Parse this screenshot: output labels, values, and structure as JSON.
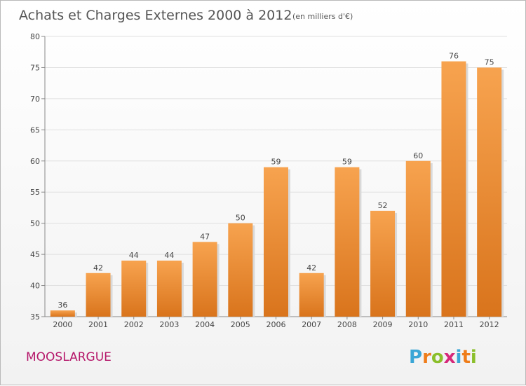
{
  "chart_data": {
    "type": "bar",
    "title": "Achats et Charges Externes 2000 à 2012",
    "subtitle": "(en milliers d'€)",
    "categories": [
      "2000",
      "2001",
      "2002",
      "2003",
      "2004",
      "2005",
      "2006",
      "2007",
      "2008",
      "2009",
      "2010",
      "2011",
      "2012"
    ],
    "values": [
      36,
      42,
      44,
      44,
      47,
      50,
      59,
      42,
      59,
      52,
      60,
      76,
      75
    ],
    "ylim": [
      35,
      80
    ],
    "yticks": [
      35,
      40,
      45,
      50,
      55,
      60,
      65,
      70,
      75,
      80
    ],
    "grid": true,
    "bar_color_top": "#f7a34f",
    "bar_color_bottom": "#d9741c"
  },
  "commune": "MOOSLARGUE",
  "brand": {
    "letters": [
      "P",
      "r",
      "o",
      "x",
      "i",
      "t",
      "i"
    ],
    "colors": [
      "#3aa6d6",
      "#ef7d1a",
      "#8bbf2b",
      "#d6297a",
      "#3aa6d6",
      "#ef7d1a",
      "#8bbf2b"
    ]
  }
}
